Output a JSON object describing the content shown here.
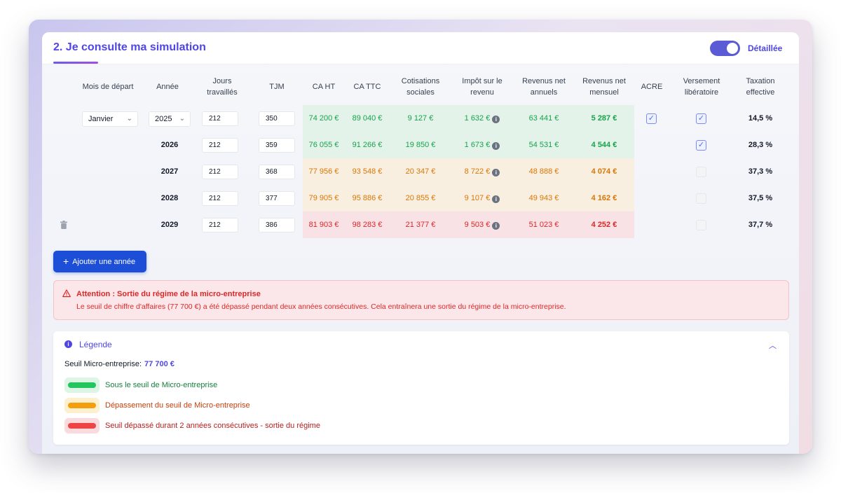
{
  "header": {
    "title": "2. Je consulte ma simulation",
    "toggle_label": "Détaillée",
    "toggle_on": true
  },
  "table": {
    "columns": [
      "Mois de départ",
      "Année",
      "Jours travaillés",
      "TJM",
      "CA HT",
      "CA TTC",
      "Cotisations sociales",
      "Impôt sur le revenu",
      "Revenus net annuels",
      "Revenus net mensuel",
      "ACRE",
      "Versement libératoire",
      "Taxation effective"
    ],
    "start_month": "Janvier",
    "rows": [
      {
        "year": "2025",
        "jours": "212",
        "tjm": "350",
        "ca_ht": "74 200 €",
        "ca_ttc": "89 040 €",
        "cotisations": "9 127 €",
        "impot": "1 632 €",
        "net_annuel": "63 441 €",
        "net_mensuel": "5 287 €",
        "acre": true,
        "versement": true,
        "taxation": "14,5 %",
        "status": "green"
      },
      {
        "year": "2026",
        "jours": "212",
        "tjm": "359",
        "ca_ht": "76 055 €",
        "ca_ttc": "91 266 €",
        "cotisations": "19 850 €",
        "impot": "1 673 €",
        "net_annuel": "54 531 €",
        "net_mensuel": "4 544 €",
        "acre": null,
        "versement": true,
        "taxation": "28,3 %",
        "status": "green"
      },
      {
        "year": "2027",
        "jours": "212",
        "tjm": "368",
        "ca_ht": "77 956 €",
        "ca_ttc": "93 548 €",
        "cotisations": "20 347 €",
        "impot": "8 722 €",
        "net_annuel": "48 888 €",
        "net_mensuel": "4 074 €",
        "acre": null,
        "versement": false,
        "taxation": "37,3 %",
        "status": "orange"
      },
      {
        "year": "2028",
        "jours": "212",
        "tjm": "377",
        "ca_ht": "79 905 €",
        "ca_ttc": "95 886 €",
        "cotisations": "20 855 €",
        "impot": "9 107 €",
        "net_annuel": "49 943 €",
        "net_mensuel": "4 162 €",
        "acre": null,
        "versement": false,
        "taxation": "37,5 %",
        "status": "orange"
      },
      {
        "year": "2029",
        "jours": "212",
        "tjm": "386",
        "ca_ht": "81 903 €",
        "ca_ttc": "98 283 €",
        "cotisations": "21 377 €",
        "impot": "9 503 €",
        "net_annuel": "51 023 €",
        "net_mensuel": "4 252 €",
        "acre": null,
        "versement": false,
        "taxation": "37,7 %",
        "status": "red"
      }
    ]
  },
  "add_button": {
    "label": "Ajouter une année"
  },
  "alert": {
    "title": "Attention : Sortie du régime de la micro-entreprise",
    "text": "Le seuil de chiffre d'affaires (77 700 €) a été dépassé pendant deux années consécutives. Cela entraînera une sortie du régime de la micro-entreprise."
  },
  "legend": {
    "title": "Légende",
    "seuil_label": "Seuil Micro-entreprise:",
    "seuil_value": "77 700 €",
    "items": [
      {
        "label": "Sous le seuil de Micro-entreprise",
        "color": "#22c55e"
      },
      {
        "label": "Dépassement du seuil de Micro-entreprise",
        "color": "#f59e0b"
      },
      {
        "label": "Seuil dépassé durant 2 années consécutives - sortie du régime",
        "color": "#ef4444"
      }
    ]
  },
  "colors": {
    "accent": "#4f46e5",
    "green": "#16a34a",
    "orange": "#d97706",
    "red": "#dc2626"
  }
}
